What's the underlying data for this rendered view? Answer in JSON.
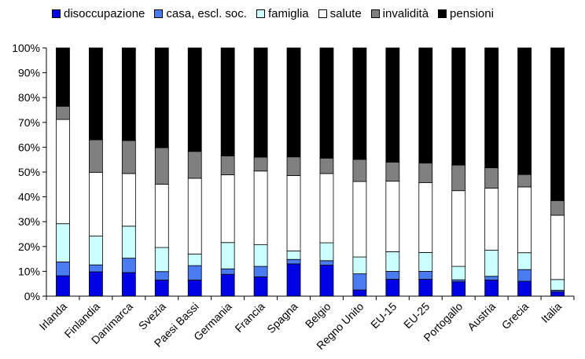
{
  "chart_data": {
    "type": "bar",
    "stacked": true,
    "percent_stacked": true,
    "title": "",
    "xlabel": "",
    "ylabel": "",
    "ylim": [
      0,
      100
    ],
    "y_ticks": [
      "0%",
      "10%",
      "20%",
      "30%",
      "40%",
      "50%",
      "60%",
      "70%",
      "80%",
      "90%",
      "100%"
    ],
    "grid": false,
    "legend_position": "top",
    "categories": [
      "Irlanda",
      "Finlandia",
      "Danimarca",
      "Svezia",
      "Paesi Bassi",
      "Germania",
      "Francia",
      "Spagna",
      "Belgio",
      "Regno Unito",
      "EU-15",
      "EU-25",
      "Portogallo",
      "Austria",
      "Grecia",
      "Italia"
    ],
    "series": [
      {
        "name": "disoccupazione",
        "color": "#0000e6",
        "values": [
          8.2,
          9.8,
          9.5,
          6.5,
          6.5,
          8.8,
          7.8,
          13.0,
          12.5,
          2.5,
          6.8,
          6.8,
          5.8,
          6.5,
          6.0,
          1.8
        ]
      },
      {
        "name": "casa, escl. soc.",
        "color": "#4a7bf0",
        "values": [
          5.6,
          2.8,
          5.8,
          3.4,
          5.8,
          2.2,
          4.2,
          1.8,
          1.8,
          6.5,
          3.2,
          3.2,
          0.8,
          1.5,
          4.7,
          0.6
        ]
      },
      {
        "name": "famiglia",
        "color": "#ccffff",
        "values": [
          15.4,
          11.6,
          12.9,
          9.7,
          4.7,
          10.6,
          8.7,
          3.4,
          7.2,
          6.8,
          7.9,
          7.6,
          5.4,
          10.5,
          6.8,
          4.3
        ]
      },
      {
        "name": "salute",
        "color": "#ffffff",
        "values": [
          42.0,
          25.7,
          21.2,
          25.5,
          30.5,
          27.3,
          29.7,
          30.4,
          27.9,
          30.4,
          28.4,
          28.1,
          30.5,
          25.0,
          26.5,
          25.9
        ]
      },
      {
        "name": "invalidità",
        "color": "#808080",
        "values": [
          5.3,
          13.1,
          13.3,
          14.7,
          10.8,
          7.6,
          5.6,
          7.5,
          6.2,
          8.9,
          7.7,
          7.9,
          10.3,
          8.2,
          5.0,
          5.9
        ]
      },
      {
        "name": "pensioni",
        "color": "#000000",
        "values": [
          23.5,
          37.0,
          37.3,
          40.2,
          41.7,
          43.5,
          44.0,
          43.9,
          44.4,
          44.9,
          46.0,
          46.4,
          47.2,
          48.3,
          51.0,
          61.5
        ]
      }
    ]
  }
}
